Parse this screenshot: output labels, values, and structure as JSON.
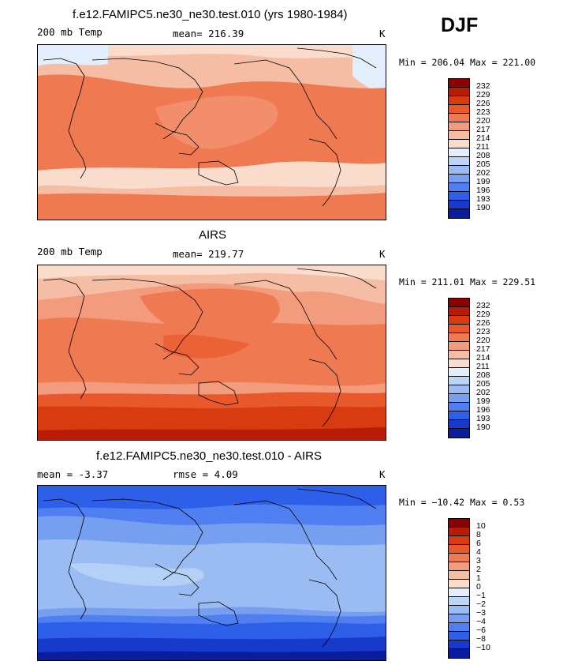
{
  "season": "DJF",
  "colors": {
    "temp_scale": [
      "#8b0000",
      "#b71c06",
      "#d83b10",
      "#e8582a",
      "#ef7a52",
      "#f39b7d",
      "#f6bda5",
      "#fadccd",
      "#e3eefc",
      "#bcd4f6",
      "#9bbcf2",
      "#769ff0",
      "#4f7ff0",
      "#2d5fe8",
      "#1739cc",
      "#0a1d9e"
    ],
    "coast": "#000000"
  },
  "panels": [
    {
      "title": "f.e12.FAMIPC5.ne30_ne30.test.010 (yrs 1980-1984)",
      "left_text": "200 mb Temp",
      "center_text": "mean= 216.39",
      "units": "K",
      "minmax": "Min = 206.04 Max = 221.00"
    },
    {
      "title": "AIRS",
      "left_text": "200 mb Temp",
      "center_text": "mean= 219.77",
      "units": "K",
      "minmax": "Min = 211.01 Max = 229.51"
    },
    {
      "title": "f.e12.FAMIPC5.ne30_ne30.test.010 - AIRS",
      "left_text": "mean =   -3.37",
      "center_text": "rmse =   4.09",
      "units": "K",
      "minmax": "Min = −10.42 Max =    0.53"
    }
  ],
  "chart_data": [
    {
      "type": "heatmap",
      "title": "f.e12.FAMIPC5.ne30_ne30.test.010 (yrs 1980-1984)",
      "variable": "200 mb Temp",
      "units": "K",
      "mean": 216.39,
      "min": 206.04,
      "max": 221.0,
      "legend_levels": [
        "232",
        "229",
        "226",
        "223",
        "220",
        "217",
        "214",
        "211",
        "208",
        "205",
        "202",
        "199",
        "196",
        "193",
        "190"
      ]
    },
    {
      "type": "heatmap",
      "title": "AIRS",
      "variable": "200 mb Temp",
      "units": "K",
      "mean": 219.77,
      "min": 211.01,
      "max": 229.51,
      "legend_levels": [
        "232",
        "229",
        "226",
        "223",
        "220",
        "217",
        "214",
        "211",
        "208",
        "205",
        "202",
        "199",
        "196",
        "193",
        "190"
      ]
    },
    {
      "type": "heatmap",
      "title": "f.e12.FAMIPC5.ne30_ne30.test.010 - AIRS",
      "units": "K",
      "mean": -3.37,
      "rmse": 4.09,
      "min": -10.42,
      "max": 0.53,
      "legend_levels": [
        "10",
        "8",
        "6",
        "4",
        "3",
        "2",
        "1",
        "0",
        "−1",
        "−2",
        "−3",
        "−4",
        "−6",
        "−8",
        "−10"
      ]
    }
  ]
}
